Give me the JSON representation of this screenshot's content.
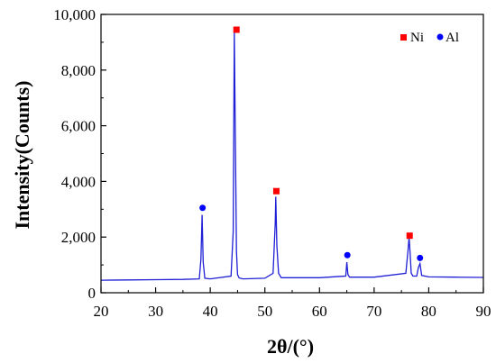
{
  "chart_data": {
    "type": "line",
    "title": "",
    "xlabel": "2θ/(°)",
    "ylabel": "Intensity(Counts)",
    "xlim": [
      20,
      90
    ],
    "ylim": [
      0,
      10000
    ],
    "x_ticks": [
      20,
      30,
      40,
      50,
      60,
      70,
      80,
      90
    ],
    "x_tick_labels": [
      "20",
      "30",
      "40",
      "50",
      "60",
      "70",
      "80",
      "90"
    ],
    "y_ticks": [
      0,
      2000,
      4000,
      6000,
      8000,
      10000
    ],
    "y_tick_labels": [
      "0",
      "2,000",
      "4,000",
      "6,000",
      "8,000",
      "10,000"
    ],
    "grid": false,
    "legend_position": "top-right",
    "series": [
      {
        "color": "#1f1fd6",
        "x": [
          20,
          25,
          30,
          35,
          38.0,
          38.3,
          38.5,
          38.7,
          39.0,
          40,
          43.8,
          44.2,
          44.4,
          44.6,
          44.8,
          45.0,
          45.3,
          46,
          50,
          51.5,
          51.9,
          52.0,
          52.2,
          52.5,
          53,
          60,
          64.8,
          65.0,
          65.2,
          65.5,
          70,
          75.8,
          76.2,
          76.4,
          76.6,
          76.8,
          77.1,
          77.8,
          78.1,
          78.4,
          78.7,
          80,
          85,
          90
        ],
        "y": [
          450,
          460,
          470,
          480,
          500,
          1200,
          2800,
          1100,
          520,
          500,
          600,
          2200,
          9400,
          5500,
          1500,
          650,
          530,
          500,
          520,
          700,
          2500,
          3450,
          1700,
          700,
          540,
          540,
          600,
          1100,
          650,
          560,
          560,
          700,
          1500,
          2000,
          1400,
          700,
          600,
          600,
          900,
          1050,
          620,
          570,
          560,
          550
        ]
      }
    ],
    "markers": [
      {
        "label": "Ni",
        "shape": "square",
        "color": "#ff0000",
        "points": [
          [
            44.8,
            9450
          ],
          [
            52.1,
            3650
          ],
          [
            76.5,
            2050
          ]
        ]
      },
      {
        "label": "Al",
        "shape": "circle",
        "color": "#0000ff",
        "points": [
          [
            38.6,
            3050
          ],
          [
            65.1,
            1350
          ],
          [
            78.4,
            1250
          ]
        ]
      }
    ],
    "legend": {
      "ni_label": "Ni",
      "al_label": "Al"
    }
  }
}
